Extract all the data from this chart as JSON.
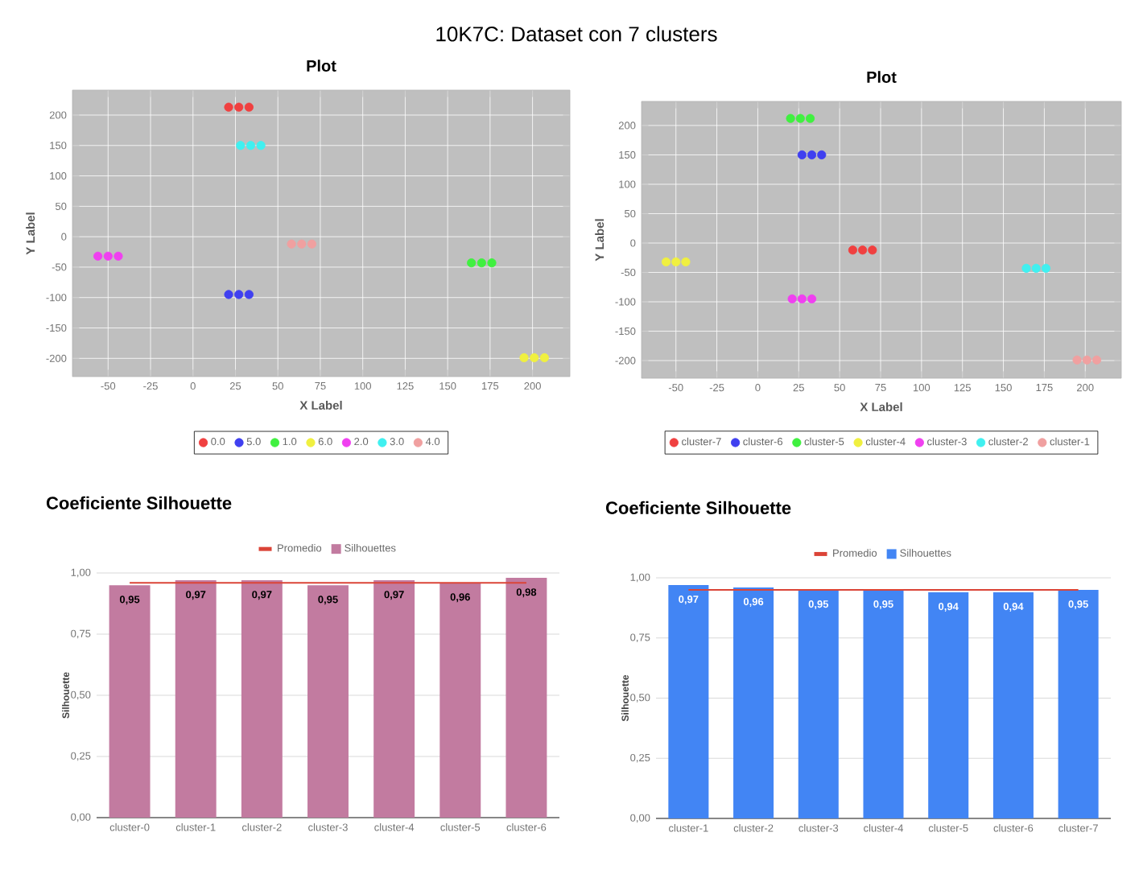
{
  "chart_data": [
    {
      "type": "other",
      "title": "10K7C: Dataset con 7 clusters"
    },
    {
      "type": "scatter",
      "title": "Plot",
      "xlabel": "X Label",
      "ylabel": "Y Label",
      "xlim": [
        -71,
        222
      ],
      "ylim": [
        -230,
        241
      ],
      "xticks": [
        -50,
        -25,
        0,
        25,
        50,
        75,
        100,
        125,
        150,
        175,
        200
      ],
      "yticks": [
        -200,
        -150,
        -100,
        -50,
        0,
        50,
        100,
        150,
        200
      ],
      "grid": true,
      "legend": "bottom",
      "marker": "circle",
      "series": [
        {
          "name": "0.0",
          "color": "#f04040",
          "x": [
            21,
            27,
            33
          ],
          "values": [
            213,
            213,
            213
          ]
        },
        {
          "name": "5.0",
          "color": "#4040f0",
          "x": [
            21,
            27,
            33
          ],
          "values": [
            -95,
            -95,
            -95
          ]
        },
        {
          "name": "1.0",
          "color": "#40f040",
          "x": [
            164,
            170,
            176
          ],
          "values": [
            -43,
            -43,
            -43
          ]
        },
        {
          "name": "6.0",
          "color": "#f0f040",
          "x": [
            195,
            201,
            207
          ],
          "values": [
            -199,
            -199,
            -199
          ]
        },
        {
          "name": "2.0",
          "color": "#f040f0",
          "x": [
            -56,
            -50,
            -44
          ],
          "values": [
            -32,
            -32,
            -32
          ]
        },
        {
          "name": "3.0",
          "color": "#40f0f0",
          "x": [
            28,
            34,
            40
          ],
          "values": [
            150,
            150,
            150
          ]
        },
        {
          "name": "4.0",
          "color": "#f0a0a0",
          "x": [
            58,
            64,
            70
          ],
          "values": [
            -12,
            -12,
            -12
          ]
        }
      ]
    },
    {
      "type": "scatter",
      "title": "Plot",
      "xlabel": "X Label",
      "ylabel": "Y Label",
      "xlim": [
        -71,
        222
      ],
      "ylim": [
        -230,
        241
      ],
      "xticks": [
        -50,
        -25,
        0,
        25,
        50,
        75,
        100,
        125,
        150,
        175,
        200
      ],
      "yticks": [
        -200,
        -150,
        -100,
        -50,
        0,
        50,
        100,
        150,
        200
      ],
      "grid": true,
      "legend": "bottom",
      "marker": "circle",
      "series": [
        {
          "name": "cluster-7",
          "color": "#f04040",
          "x": [
            58,
            64,
            70
          ],
          "values": [
            -12,
            -12,
            -12
          ]
        },
        {
          "name": "cluster-6",
          "color": "#4040f0",
          "x": [
            27,
            33,
            39
          ],
          "values": [
            150,
            150,
            150
          ]
        },
        {
          "name": "cluster-5",
          "color": "#40f040",
          "x": [
            20,
            26,
            32
          ],
          "values": [
            212,
            212,
            212
          ]
        },
        {
          "name": "cluster-4",
          "color": "#f0f040",
          "x": [
            -56,
            -50,
            -44
          ],
          "values": [
            -32,
            -32,
            -32
          ]
        },
        {
          "name": "cluster-3",
          "color": "#f040f0",
          "x": [
            21,
            27,
            33
          ],
          "values": [
            -95,
            -95,
            -95
          ]
        },
        {
          "name": "cluster-2",
          "color": "#40f0f0",
          "x": [
            164,
            170,
            176
          ],
          "values": [
            -43,
            -43,
            -43
          ]
        },
        {
          "name": "cluster-1",
          "color": "#f0a0a0",
          "x": [
            195,
            201,
            207
          ],
          "values": [
            -199,
            -199,
            -199
          ]
        }
      ]
    },
    {
      "type": "bar",
      "title": "Coeficiente Silhouette",
      "ylabel": "Silhouette",
      "categories": [
        "cluster-0",
        "cluster-1",
        "cluster-2",
        "cluster-3",
        "cluster-4",
        "cluster-5",
        "cluster-6"
      ],
      "ylim": [
        0,
        1
      ],
      "yticks": [
        {
          "value": 0,
          "label": "0,00"
        },
        {
          "value": 0.25,
          "label": "0,25"
        },
        {
          "value": 0.5,
          "label": "0,50"
        },
        {
          "value": 0.75,
          "label": "0,75"
        },
        {
          "value": 1,
          "label": "1,00"
        }
      ],
      "grid": "y",
      "legend": "top",
      "series": [
        {
          "name": "Silhouettes",
          "color": "#c27ba0",
          "values": [
            0.95,
            0.97,
            0.97,
            0.95,
            0.97,
            0.96,
            0.98
          ],
          "value_labels": [
            "0,95",
            "0,97",
            "0,97",
            "0,95",
            "0,97",
            "0,96",
            "0,98"
          ]
        },
        {
          "name": "Promedio",
          "type": "line",
          "color": "#db4437",
          "values": [
            0.96,
            0.96,
            0.96,
            0.96,
            0.96,
            0.96,
            0.96
          ]
        }
      ]
    },
    {
      "type": "bar",
      "title": "Coeficiente Silhouette",
      "ylabel": "Silhouette",
      "categories": [
        "cluster-1",
        "cluster-2",
        "cluster-3",
        "cluster-4",
        "cluster-5",
        "cluster-6",
        "cluster-7"
      ],
      "ylim": [
        0,
        1
      ],
      "yticks": [
        {
          "value": 0,
          "label": "0,00"
        },
        {
          "value": 0.25,
          "label": "0,25"
        },
        {
          "value": 0.5,
          "label": "0,50"
        },
        {
          "value": 0.75,
          "label": "0,75"
        },
        {
          "value": 1,
          "label": "1,00"
        }
      ],
      "grid": "y",
      "legend": "top",
      "series": [
        {
          "name": "Silhouettes",
          "color": "#4285f4",
          "values": [
            0.97,
            0.96,
            0.95,
            0.95,
            0.94,
            0.94,
            0.95
          ],
          "value_labels": [
            "0,97",
            "0,96",
            "0,95",
            "0,95",
            "0,94",
            "0,94",
            "0,95"
          ]
        },
        {
          "name": "Promedio",
          "type": "line",
          "color": "#db4437",
          "values": [
            0.95,
            0.95,
            0.95,
            0.95,
            0.95,
            0.95,
            0.95
          ]
        }
      ]
    }
  ]
}
